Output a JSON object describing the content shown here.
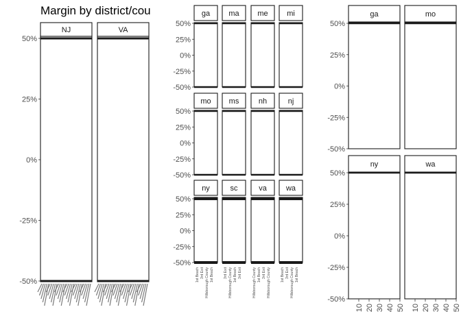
{
  "chart_data": [
    {
      "type": "bar",
      "title": "Margin by district/cou",
      "xlabel": "",
      "ylabel": "",
      "ylim": [
        -0.5,
        0.5
      ],
      "y_ticks": [
        "-50%",
        "-25%",
        "0%",
        "25%",
        "50%"
      ],
      "panels": [
        "NJ",
        "VA"
      ],
      "lines_at": [
        0.5,
        -0.5
      ]
    },
    {
      "type": "bar",
      "title": "",
      "xlabel": "",
      "ylabel": "",
      "ylim": [
        -0.5,
        0.5
      ],
      "y_ticks": [
        "-50%",
        "-25%",
        "0%",
        "25%",
        "50%"
      ],
      "panels": [
        "ga",
        "ma",
        "me",
        "mi",
        "mo",
        "ms",
        "nh",
        "nj",
        "ny",
        "sc",
        "va",
        "wa"
      ],
      "lines_at": [
        0.5,
        -0.5
      ],
      "bottom_tick_labels": [
        "1st Beach",
        "3rd Exit",
        "Hillsborough County",
        "1st Beach",
        "3rd Exit",
        "Hillsborough County"
      ]
    },
    {
      "type": "bar",
      "title": "",
      "xlabel": "",
      "ylabel": "",
      "ylim": [
        -0.5,
        0.5
      ],
      "xlim": [
        0,
        50
      ],
      "x_ticks": [
        "10",
        "20",
        "30",
        "40",
        "50"
      ],
      "y_ticks": [
        "-50%",
        "-25%",
        "0%",
        "25%",
        "50%"
      ],
      "panels": [
        "ga",
        "mo",
        "ny",
        "wa"
      ],
      "lines_at": [
        0.5
      ]
    }
  ]
}
